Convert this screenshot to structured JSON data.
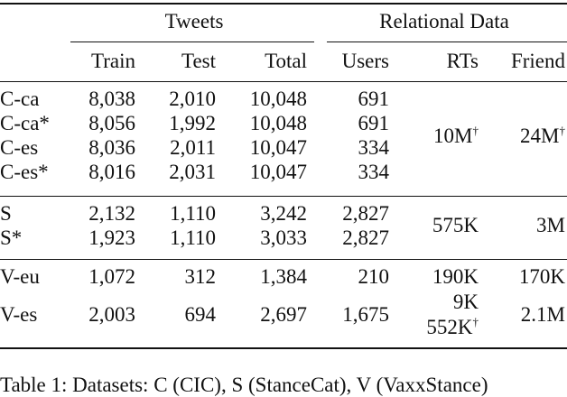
{
  "header": {
    "group_tweets": "Tweets",
    "group_relational": "Relational Data",
    "col_train": "Train",
    "col_test": "Test",
    "col_total": "Total",
    "col_users": "Users",
    "col_rts": "RTs",
    "col_friend": "Friend"
  },
  "rows": [
    {
      "name": "C-ca",
      "train": "8,038",
      "test": "2,010",
      "total": "10,048",
      "users": "691"
    },
    {
      "name": "C-ca*",
      "train": "8,056",
      "test": "1,992",
      "total": "10,048",
      "users": "691"
    },
    {
      "name": "C-es",
      "train": "8,036",
      "test": "2,011",
      "total": "10,047",
      "users": "334"
    },
    {
      "name": "C-es*",
      "train": "8,016",
      "test": "2,031",
      "total": "10,047",
      "users": "334"
    },
    {
      "name": "S",
      "train": "2,132",
      "test": "1,110",
      "total": "3,242",
      "users": "2,827"
    },
    {
      "name": "S*",
      "train": "1,923",
      "test": "1,110",
      "total": "3,033",
      "users": "2,827"
    },
    {
      "name": "V-eu",
      "train": "1,072",
      "test": "312",
      "total": "1,384",
      "users": "210"
    },
    {
      "name": "V-es",
      "train": "2,003",
      "test": "694",
      "total": "2,697",
      "users": "1,675"
    }
  ],
  "groups": {
    "c_rts": "10M",
    "c_friend": "24M",
    "dagger": "†",
    "s_rts": "575K",
    "s_friend": "3M",
    "veu_rts": "190K",
    "veu_friend": "170K",
    "ves_rts_1": "9K",
    "ves_rts_2": "552K",
    "ves_friend": "2.1M"
  },
  "caption_partial": "Table 1: Datasets: C (CIC), S (StanceCat), V (VaxxStance)"
}
